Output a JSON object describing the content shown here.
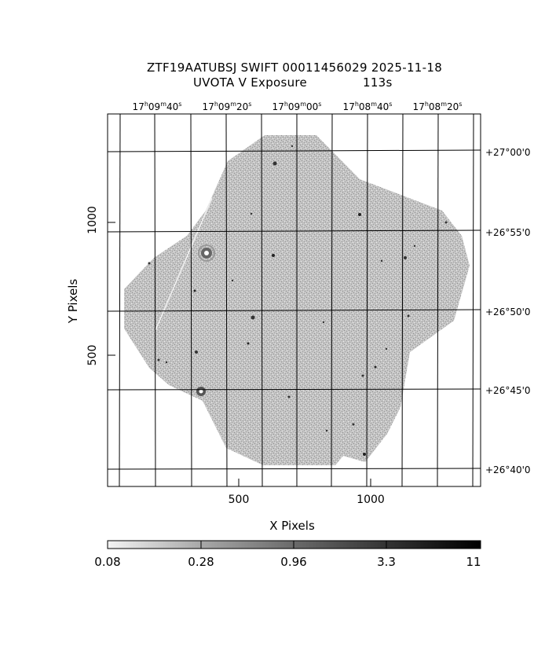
{
  "title": {
    "line1": "ZTF19AATUBSJ SWIFT 00011456029 2025-11-18",
    "line2_left": "UVOTA V Exposure",
    "line2_right": "113s"
  },
  "axes": {
    "xlabel": "X Pixels",
    "ylabel": "Y Pixels",
    "x_ticks": [
      "500",
      "1000"
    ],
    "y_ticks": [
      "500",
      "1000"
    ]
  },
  "ra_ticks": [
    {
      "h": "17",
      "m": "09",
      "s": "40"
    },
    {
      "h": "17",
      "m": "09",
      "s": "20"
    },
    {
      "h": "17",
      "m": "09",
      "s": "00"
    },
    {
      "h": "17",
      "m": "08",
      "s": "40"
    },
    {
      "h": "17",
      "m": "08",
      "s": "20"
    }
  ],
  "dec_ticks": [
    "+27°00'0",
    "+26°55'0",
    "+26°50'0",
    "+26°45'0",
    "+26°40'0"
  ],
  "colorbar": {
    "labels": [
      "0.08",
      "0.28",
      "0.96",
      "3.3",
      "11"
    ]
  }
}
